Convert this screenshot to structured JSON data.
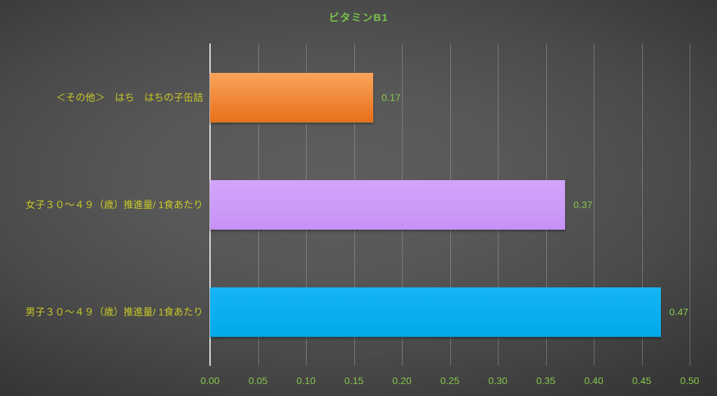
{
  "chart_data": {
    "type": "bar",
    "orientation": "horizontal",
    "title": "ビタミンB1",
    "categories": [
      "＜その他＞　はち　はちの子缶詰",
      "女子３０～４９（歳）推進量/ 1食あたり",
      "男子３０～４９（歳）推進量/ 1食あたり"
    ],
    "values": [
      0.17,
      0.37,
      0.47
    ],
    "value_labels": [
      "0.17",
      "0.37",
      "0.47"
    ],
    "xlim": [
      0,
      0.5
    ],
    "x_ticks": [
      "0.00",
      "0.05",
      "0.10",
      "0.15",
      "0.20",
      "0.25",
      "0.30",
      "0.35",
      "0.40",
      "0.45",
      "0.50"
    ],
    "xlabel": "",
    "ylabel": "",
    "grid": "vertical",
    "legend": "none",
    "bar_colors": [
      {
        "top": "#F9A45A",
        "bottom": "#E8701A"
      },
      {
        "top": "#D2A5FC",
        "bottom": "#C791F5"
      },
      {
        "top": "#16B5F5",
        "bottom": "#00A9E9"
      }
    ],
    "colors": {
      "title_text": "#77C24A",
      "tick_text": "#86C84E",
      "value_text": "#86C84E",
      "category_text": "#C9C927",
      "axis_line": "#DEDEDE",
      "background_center": "#5E5E5E",
      "background_edge": "#2A2A2A"
    }
  }
}
